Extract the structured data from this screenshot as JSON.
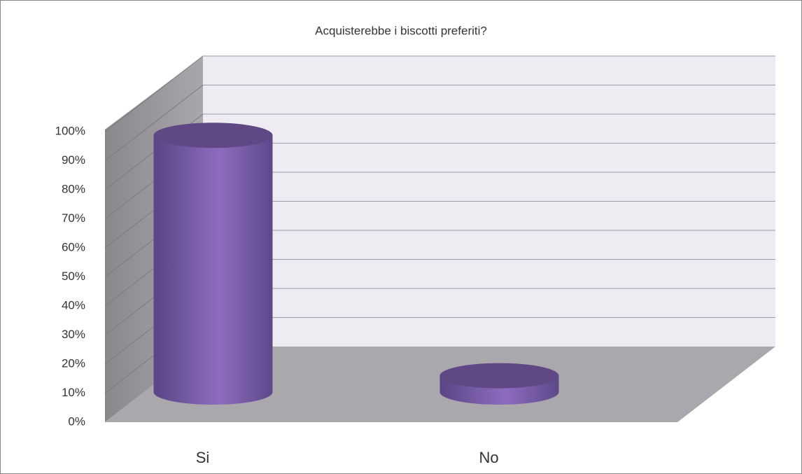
{
  "chart_data": {
    "type": "bar3d",
    "title": "Acquisterebbe i biscotti preferiti?",
    "categories": [
      "Si",
      "No"
    ],
    "values": [
      94,
      6
    ],
    "color": "#7f62aa",
    "ylim": [
      0,
      100
    ],
    "yticks": [
      {
        "value": 0,
        "label": "0%"
      },
      {
        "value": 10,
        "label": "10%"
      },
      {
        "value": 20,
        "label": "20%"
      },
      {
        "value": 30,
        "label": "30%"
      },
      {
        "value": 40,
        "label": "40%"
      },
      {
        "value": 50,
        "label": "50%"
      },
      {
        "value": 60,
        "label": "60%"
      },
      {
        "value": 70,
        "label": "70%"
      },
      {
        "value": 80,
        "label": "80%"
      },
      {
        "value": 90,
        "label": "90%"
      },
      {
        "value": 100,
        "label": "100%"
      }
    ],
    "grid": true
  }
}
